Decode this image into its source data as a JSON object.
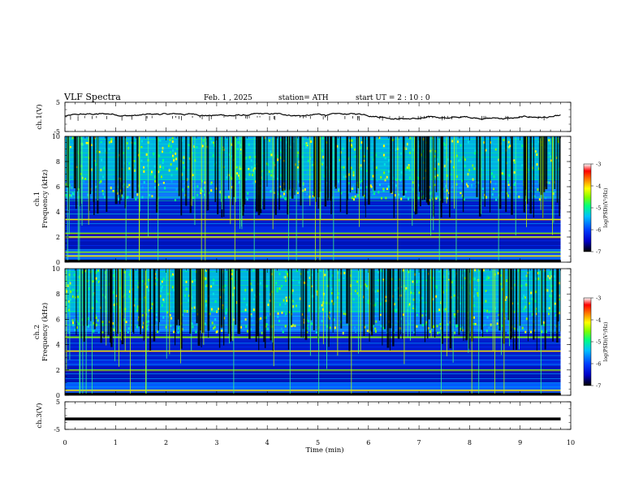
{
  "header": {
    "title": "VLF  Spectra",
    "date": "Feb. 1  , 2025",
    "station": "station= ATH",
    "start_ut": "start  UT  =   2  : 10 : 0"
  },
  "chart_data": [
    {
      "type": "line",
      "name": "ch1-waveform",
      "ylabel": "ch.1(V)",
      "ylim": [
        -5,
        5
      ],
      "yticks": [
        "5",
        "-5"
      ],
      "xlim": [
        0,
        10
      ],
      "trace_end_min": 9.8,
      "approx_level_v": 0.3,
      "noise_amplitude_v": 1
    },
    {
      "type": "heatmap",
      "name": "ch1-spectrogram",
      "ylabel": "ch.1\nFrequency  (kHz)",
      "ylim": [
        0,
        10
      ],
      "yticks": [
        "0",
        "2",
        "4",
        "6",
        "8",
        "10"
      ],
      "xlim": [
        0,
        10
      ],
      "colorbar": {
        "label": "log(PSD)(V²/Hz)",
        "range": [
          -7,
          -3
        ],
        "ticks": [
          "-3",
          "-4",
          "-5",
          "-6",
          "-7"
        ]
      },
      "bands_khz": [
        0.5,
        0.8,
        2.0,
        2.3,
        3.4
      ]
    },
    {
      "type": "heatmap",
      "name": "ch2-spectrogram",
      "ylabel": "ch.2\nFrequency  (kHz)",
      "ylim": [
        0,
        10
      ],
      "yticks": [
        "0",
        "2",
        "4",
        "6",
        "8",
        "10"
      ],
      "xlim": [
        0,
        10
      ],
      "colorbar": {
        "label": "log(PSD)(V²/Hz)",
        "range": [
          -7,
          -3
        ],
        "ticks": [
          "-3",
          "-4",
          "-5",
          "-6",
          "-7"
        ]
      },
      "bands_khz": [
        0.4,
        2.0,
        3.5,
        4.6
      ]
    },
    {
      "type": "line",
      "name": "ch3-waveform",
      "ylabel": "ch.3(V)",
      "ylim": [
        -5,
        5
      ],
      "yticks": [
        "5",
        "-5"
      ],
      "xlim": [
        0,
        10
      ],
      "trace_end_min": 9.8,
      "approx_level_v": -1.2
    }
  ],
  "xaxis": {
    "label": "Time  (min)",
    "ticks": [
      "0",
      "1",
      "2",
      "3",
      "4",
      "5",
      "6",
      "7",
      "8",
      "9",
      "10"
    ]
  },
  "colors": {
    "jet": [
      "#000000",
      "#0000c8",
      "#0030ff",
      "#00a0ff",
      "#00e0e0",
      "#00ff80",
      "#80ff00",
      "#ffff00",
      "#ff8000",
      "#ff0000",
      "#ffffff"
    ]
  }
}
